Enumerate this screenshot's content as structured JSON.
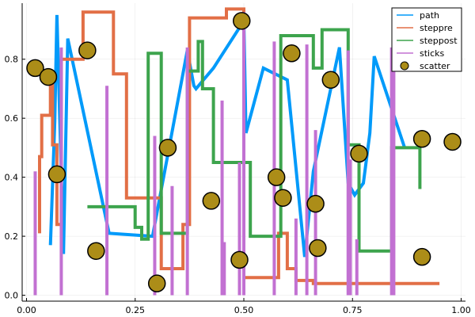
{
  "chart_data": {
    "type": "line",
    "title": "",
    "xlabel": "",
    "ylabel": "",
    "xlim": [
      -0.01,
      1.01
    ],
    "ylim": [
      -0.02,
      0.99
    ],
    "x_ticks": [
      {
        "value": 0.0,
        "label": "0.00"
      },
      {
        "value": 0.25,
        "label": "0.25"
      },
      {
        "value": 0.5,
        "label": "0.50"
      },
      {
        "value": 0.75,
        "label": "0.75"
      },
      {
        "value": 1.0,
        "label": "1.00"
      }
    ],
    "y_ticks": [
      {
        "value": 0.0,
        "label": "0.0"
      },
      {
        "value": 0.2,
        "label": "0.2"
      },
      {
        "value": 0.4,
        "label": "0.4"
      },
      {
        "value": 0.6,
        "label": "0.6"
      },
      {
        "value": 0.8,
        "label": "0.8"
      }
    ],
    "grid": true,
    "legend_position": "top-right",
    "series": [
      {
        "name": "path",
        "kind": "line",
        "color": "#009AFA",
        "x": [
          0.055,
          0.065,
          0.07,
          0.085,
          0.095,
          0.19,
          0.29,
          0.37,
          0.385,
          0.39,
          0.43,
          0.5,
          0.505,
          0.545,
          0.6,
          0.64,
          0.66,
          0.72,
          0.74,
          0.755,
          0.775,
          0.79,
          0.8,
          0.87
        ],
        "y": [
          0.17,
          0.59,
          0.95,
          0.14,
          0.87,
          0.21,
          0.2,
          0.83,
          0.71,
          0.7,
          0.77,
          0.93,
          0.55,
          0.77,
          0.73,
          0.13,
          0.42,
          0.84,
          0.38,
          0.34,
          0.38,
          0.55,
          0.81,
          0.5
        ]
      },
      {
        "name": "steppre",
        "kind": "steppre",
        "color": "#E26F46",
        "x": [
          0.03,
          0.035,
          0.055,
          0.06,
          0.07,
          0.08,
          0.13,
          0.2,
          0.23,
          0.31,
          0.36,
          0.375,
          0.46,
          0.5,
          0.58,
          0.6,
          0.62,
          0.66,
          0.69,
          0.95
        ],
        "y": [
          0.21,
          0.47,
          0.61,
          0.72,
          0.51,
          0.24,
          0.8,
          0.96,
          0.75,
          0.33,
          0.09,
          0.24,
          0.94,
          0.97,
          0.06,
          0.21,
          0.09,
          0.05,
          0.04,
          0.04
        ]
      },
      {
        "name": "steppost",
        "kind": "steppost",
        "color": "#3DA44D",
        "x": [
          0.14,
          0.2,
          0.25,
          0.265,
          0.28,
          0.31,
          0.37,
          0.395,
          0.405,
          0.43,
          0.515,
          0.585,
          0.63,
          0.66,
          0.68,
          0.74,
          0.765,
          0.84,
          0.905
        ],
        "y": [
          0.3,
          0.3,
          0.23,
          0.19,
          0.82,
          0.21,
          0.76,
          0.86,
          0.7,
          0.45,
          0.2,
          0.88,
          0.88,
          0.77,
          0.9,
          0.51,
          0.15,
          0.5,
          0.36
        ]
      },
      {
        "name": "sticks",
        "kind": "sticks",
        "color": "#C271D2",
        "x": [
          0.02,
          0.08,
          0.185,
          0.295,
          0.335,
          0.37,
          0.45,
          0.455,
          0.49,
          0.5,
          0.57,
          0.62,
          0.645,
          0.665,
          0.74,
          0.745,
          0.76,
          0.84,
          0.845
        ],
        "y": [
          0.42,
          0.84,
          0.71,
          0.54,
          0.37,
          0.84,
          0.66,
          0.18,
          0.45,
          0.96,
          0.86,
          0.26,
          0.85,
          0.56,
          0.83,
          0.46,
          0.19,
          0.84,
          0.88
        ]
      },
      {
        "name": "scatter",
        "kind": "scatter",
        "color": "#AC8D18",
        "x": [
          0.02,
          0.05,
          0.07,
          0.14,
          0.16,
          0.3,
          0.325,
          0.425,
          0.49,
          0.495,
          0.575,
          0.59,
          0.61,
          0.665,
          0.67,
          0.7,
          0.765,
          0.91,
          0.91,
          0.98
        ],
        "y": [
          0.77,
          0.74,
          0.41,
          0.83,
          0.15,
          0.04,
          0.5,
          0.32,
          0.12,
          0.93,
          0.4,
          0.33,
          0.82,
          0.31,
          0.16,
          0.73,
          0.48,
          0.53,
          0.13,
          0.52
        ]
      }
    ]
  }
}
